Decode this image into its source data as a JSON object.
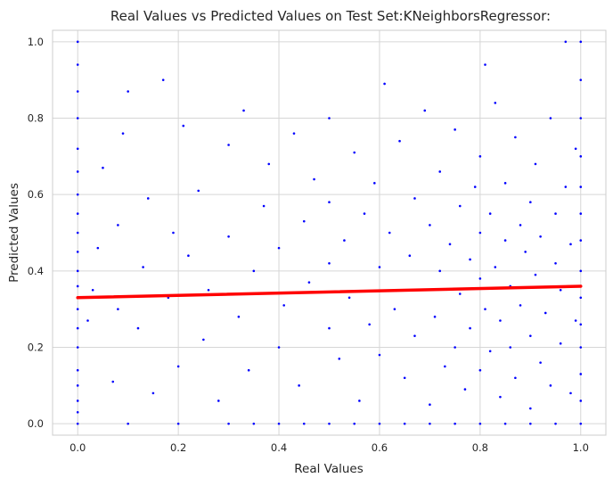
{
  "chart_data": {
    "type": "scatter",
    "title": "Real Values vs Predicted Values on Test Set:KNeighborsRegressor:",
    "xlabel": "Real Values",
    "ylabel": "Predicted Values",
    "xlim": [
      -0.05,
      1.05
    ],
    "ylim": [
      -0.03,
      1.03
    ],
    "x_ticks": [
      "0.0",
      "0.2",
      "0.4",
      "0.6",
      "0.8",
      "1.0"
    ],
    "y_ticks": [
      "0.0",
      "0.2",
      "0.4",
      "0.6",
      "0.8",
      "1.0"
    ],
    "grid": true,
    "colors": {
      "points": "#0000ff",
      "fit_line": "#ff0000",
      "grid": "#d6d6d6",
      "background": "#ffffff"
    },
    "series": [
      {
        "type": "scatter",
        "points": [
          [
            0.0,
            0.0
          ],
          [
            0.0,
            0.03
          ],
          [
            0.0,
            0.06
          ],
          [
            0.0,
            0.1
          ],
          [
            0.0,
            0.14
          ],
          [
            0.0,
            0.2
          ],
          [
            0.0,
            0.25
          ],
          [
            0.0,
            0.3
          ],
          [
            0.0,
            0.33
          ],
          [
            0.0,
            0.36
          ],
          [
            0.0,
            0.4
          ],
          [
            0.0,
            0.45
          ],
          [
            0.0,
            0.5
          ],
          [
            0.0,
            0.55
          ],
          [
            0.0,
            0.6
          ],
          [
            0.0,
            0.66
          ],
          [
            0.0,
            0.72
          ],
          [
            0.0,
            0.8
          ],
          [
            0.0,
            0.87
          ],
          [
            0.0,
            0.94
          ],
          [
            0.0,
            1.0
          ],
          [
            0.02,
            0.27
          ],
          [
            0.03,
            0.35
          ],
          [
            0.04,
            0.46
          ],
          [
            0.05,
            0.67
          ],
          [
            0.07,
            0.11
          ],
          [
            0.08,
            0.3
          ],
          [
            0.08,
            0.52
          ],
          [
            0.09,
            0.76
          ],
          [
            0.1,
            0.87
          ],
          [
            0.12,
            0.25
          ],
          [
            0.13,
            0.41
          ],
          [
            0.14,
            0.59
          ],
          [
            0.15,
            0.08
          ],
          [
            0.17,
            0.9
          ],
          [
            0.18,
            0.33
          ],
          [
            0.19,
            0.5
          ],
          [
            0.2,
            0.15
          ],
          [
            0.21,
            0.78
          ],
          [
            0.22,
            0.44
          ],
          [
            0.24,
            0.61
          ],
          [
            0.25,
            0.22
          ],
          [
            0.26,
            0.35
          ],
          [
            0.28,
            0.06
          ],
          [
            0.3,
            0.49
          ],
          [
            0.3,
            0.73
          ],
          [
            0.32,
            0.28
          ],
          [
            0.33,
            0.82
          ],
          [
            0.34,
            0.14
          ],
          [
            0.35,
            0.4
          ],
          [
            0.37,
            0.57
          ],
          [
            0.38,
            0.68
          ],
          [
            0.4,
            0.2
          ],
          [
            0.4,
            0.46
          ],
          [
            0.41,
            0.31
          ],
          [
            0.43,
            0.76
          ],
          [
            0.44,
            0.1
          ],
          [
            0.45,
            0.53
          ],
          [
            0.46,
            0.37
          ],
          [
            0.47,
            0.64
          ],
          [
            0.5,
            0.0
          ],
          [
            0.5,
            0.25
          ],
          [
            0.5,
            0.42
          ],
          [
            0.5,
            0.58
          ],
          [
            0.5,
            0.8
          ],
          [
            0.52,
            0.17
          ],
          [
            0.53,
            0.48
          ],
          [
            0.54,
            0.33
          ],
          [
            0.55,
            0.71
          ],
          [
            0.56,
            0.06
          ],
          [
            0.57,
            0.55
          ],
          [
            0.58,
            0.26
          ],
          [
            0.59,
            0.63
          ],
          [
            0.6,
            0.41
          ],
          [
            0.6,
            0.18
          ],
          [
            0.61,
            0.89
          ],
          [
            0.62,
            0.5
          ],
          [
            0.63,
            0.3
          ],
          [
            0.64,
            0.74
          ],
          [
            0.65,
            0.12
          ],
          [
            0.66,
            0.44
          ],
          [
            0.67,
            0.59
          ],
          [
            0.67,
            0.23
          ],
          [
            0.68,
            0.35
          ],
          [
            0.69,
            0.82
          ],
          [
            0.7,
            0.05
          ],
          [
            0.7,
            0.52
          ],
          [
            0.71,
            0.28
          ],
          [
            0.72,
            0.66
          ],
          [
            0.72,
            0.4
          ],
          [
            0.73,
            0.15
          ],
          [
            0.74,
            0.47
          ],
          [
            0.75,
            0.2
          ],
          [
            0.75,
            0.77
          ],
          [
            0.76,
            0.34
          ],
          [
            0.76,
            0.57
          ],
          [
            0.77,
            0.09
          ],
          [
            0.78,
            0.43
          ],
          [
            0.78,
            0.25
          ],
          [
            0.79,
            0.62
          ],
          [
            0.8,
            0.0
          ],
          [
            0.8,
            0.14
          ],
          [
            0.8,
            0.38
          ],
          [
            0.8,
            0.5
          ],
          [
            0.8,
            0.7
          ],
          [
            0.81,
            0.3
          ],
          [
            0.81,
            0.94
          ],
          [
            0.82,
            0.19
          ],
          [
            0.82,
            0.55
          ],
          [
            0.83,
            0.41
          ],
          [
            0.83,
            0.84
          ],
          [
            0.84,
            0.07
          ],
          [
            0.84,
            0.27
          ],
          [
            0.85,
            0.48
          ],
          [
            0.85,
            0.63
          ],
          [
            0.86,
            0.2
          ],
          [
            0.86,
            0.36
          ],
          [
            0.87,
            0.75
          ],
          [
            0.87,
            0.12
          ],
          [
            0.88,
            0.52
          ],
          [
            0.88,
            0.31
          ],
          [
            0.89,
            0.45
          ],
          [
            0.9,
            0.04
          ],
          [
            0.9,
            0.23
          ],
          [
            0.9,
            0.58
          ],
          [
            0.91,
            0.39
          ],
          [
            0.91,
            0.68
          ],
          [
            0.92,
            0.16
          ],
          [
            0.92,
            0.49
          ],
          [
            0.93,
            0.29
          ],
          [
            0.94,
            0.8
          ],
          [
            0.94,
            0.1
          ],
          [
            0.95,
            0.42
          ],
          [
            0.95,
            0.55
          ],
          [
            0.96,
            0.21
          ],
          [
            0.96,
            0.35
          ],
          [
            0.97,
            0.62
          ],
          [
            0.97,
            1.0
          ],
          [
            0.98,
            0.08
          ],
          [
            0.98,
            0.47
          ],
          [
            0.99,
            0.27
          ],
          [
            0.99,
            0.72
          ],
          [
            1.0,
            0.0
          ],
          [
            1.0,
            0.06
          ],
          [
            1.0,
            0.13
          ],
          [
            1.0,
            0.2
          ],
          [
            1.0,
            0.26
          ],
          [
            1.0,
            0.33
          ],
          [
            1.0,
            0.4
          ],
          [
            1.0,
            0.48
          ],
          [
            1.0,
            0.55
          ],
          [
            1.0,
            0.62
          ],
          [
            1.0,
            0.7
          ],
          [
            1.0,
            0.8
          ],
          [
            1.0,
            0.9
          ],
          [
            1.0,
            1.0
          ],
          [
            0.1,
            0.0
          ],
          [
            0.2,
            0.0
          ],
          [
            0.3,
            0.0
          ],
          [
            0.4,
            0.0
          ],
          [
            0.6,
            0.0
          ],
          [
            0.7,
            0.0
          ],
          [
            0.9,
            0.0
          ],
          [
            0.35,
            0.0
          ],
          [
            0.45,
            0.0
          ],
          [
            0.55,
            0.0
          ],
          [
            0.65,
            0.0
          ],
          [
            0.75,
            0.0
          ],
          [
            0.85,
            0.0
          ],
          [
            0.95,
            0.0
          ]
        ]
      },
      {
        "type": "line",
        "x": [
          0.0,
          1.0
        ],
        "y": [
          0.33,
          0.36
        ]
      }
    ]
  }
}
